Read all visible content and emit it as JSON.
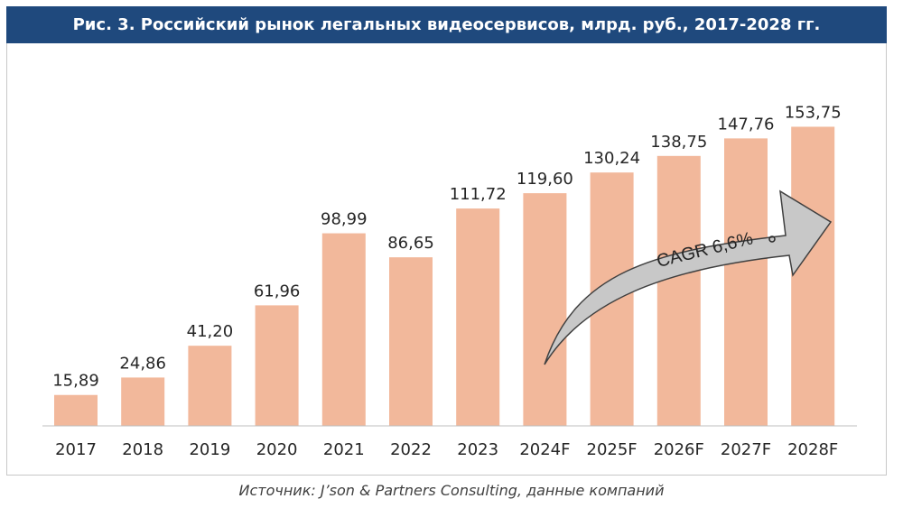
{
  "title": "Рис. 3. Российский рынок легальных видеосервисов, млрд. руб., 2017-2028 гг.",
  "source": "Источник: J’son & Partners Consulting, данные компаний",
  "cagr_label": "CAGR 6,6%",
  "colors": {
    "title_bg": "#1f497d",
    "bar": "#f2b89b",
    "arrow": "#c8c8c8",
    "text": "#262626"
  },
  "chart_data": {
    "type": "bar",
    "title": "Рис. 3. Российский рынок легальных видеосервисов, млрд. руб., 2017-2028 гг.",
    "categories": [
      "2017",
      "2018",
      "2019",
      "2020",
      "2021",
      "2022",
      "2023",
      "2024F",
      "2025F",
      "2026F",
      "2027F",
      "2028F"
    ],
    "values": [
      15.89,
      24.86,
      41.2,
      61.96,
      98.99,
      86.65,
      111.72,
      119.6,
      130.24,
      138.75,
      147.76,
      153.75
    ],
    "value_labels": [
      "15,89",
      "24,86",
      "41,20",
      "61,96",
      "98,99",
      "86,65",
      "111,72",
      "119,60",
      "130,24",
      "138,75",
      "147,76",
      "153,75"
    ],
    "xlabel": "",
    "ylabel": "",
    "ylim": [
      0,
      170
    ],
    "grid": false,
    "legend": "none"
  }
}
